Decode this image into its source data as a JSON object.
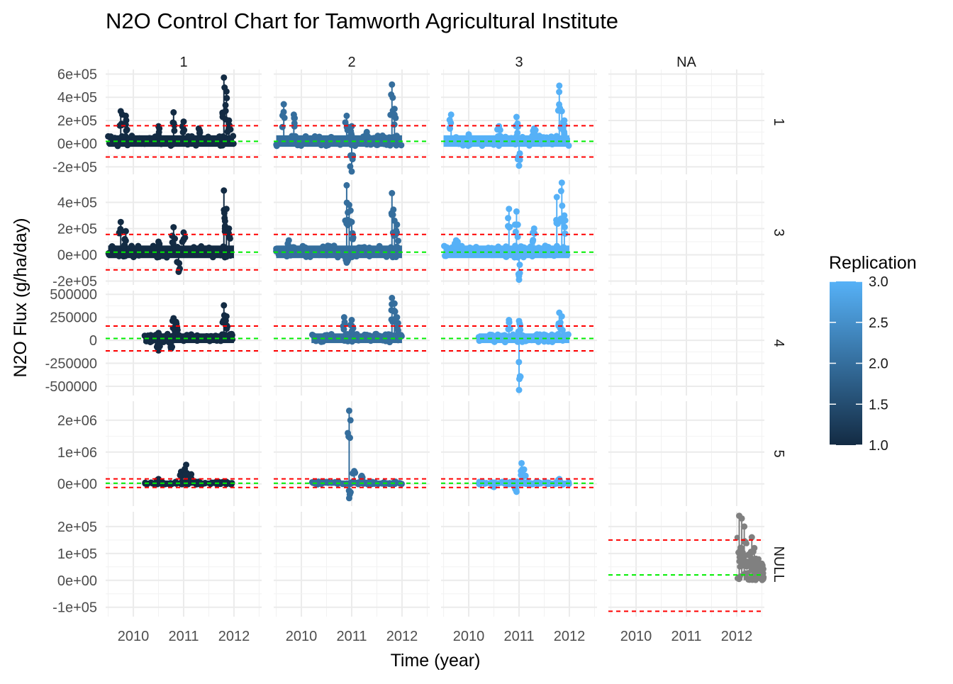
{
  "chart_data": {
    "type": "line",
    "title": "N2O Control Chart for Tamworth Agricultural Institute",
    "xlabel": "Time (year)",
    "ylabel": "N2O Flux (g/ha/day)",
    "x_ticks": [
      "2010",
      "2011",
      "2012"
    ],
    "x_range": [
      2009.45,
      2012.55
    ],
    "facet_columns": [
      "1",
      "2",
      "3",
      "NA"
    ],
    "facet_rows": [
      "1",
      "3",
      "4",
      "5",
      "NULL"
    ],
    "legend": {
      "title": "Replication",
      "position": "right",
      "ticks": [
        "3.0",
        "2.5",
        "2.0",
        "1.5",
        "1.0"
      ],
      "low_color": "#132B43",
      "high_color": "#56B1F7",
      "range": [
        1.0,
        3.0
      ]
    },
    "colors": {
      "upper_control_limit": "#ff0000",
      "lower_control_limit": "#ff0000",
      "center_line": "#00ee00",
      "null_series": "#808080"
    },
    "rows": [
      {
        "label": "1",
        "y_ticks": [
          {
            "value": -200000,
            "label": "-2e+05"
          },
          {
            "value": 0,
            "label": "0e+00"
          },
          {
            "value": 200000,
            "label": "2e+05"
          },
          {
            "value": 400000,
            "label": "4e+05"
          },
          {
            "value": 600000,
            "label": "6e+05"
          }
        ],
        "y_range": [
          -265000,
          640000
        ],
        "ucl": 155000,
        "center": 20000,
        "lcl": -115000,
        "x_start": [
          2009.5,
          2009.5,
          2009.5
        ],
        "x_end": [
          2012.0,
          2012.0,
          2012.0
        ],
        "spikes": [
          [
            [
              2009.75,
              280000
            ],
            [
              2009.85,
              240000
            ],
            [
              2010.5,
              150000
            ],
            [
              2010.8,
              270000
            ],
            [
              2011.0,
              190000
            ],
            [
              2011.3,
              130000
            ],
            [
              2011.8,
              570000
            ],
            [
              2011.85,
              450000
            ],
            [
              2011.9,
              200000
            ]
          ],
          [
            [
              2009.65,
              340000
            ],
            [
              2009.85,
              250000
            ],
            [
              2010.9,
              240000
            ],
            [
              2011.0,
              150000
            ],
            [
              2011.0,
              -240000
            ],
            [
              2011.3,
              100000
            ],
            [
              2011.8,
              510000
            ],
            [
              2011.85,
              300000
            ]
          ],
          [
            [
              2009.65,
              250000
            ],
            [
              2010.0,
              80000
            ],
            [
              2010.6,
              150000
            ],
            [
              2010.95,
              230000
            ],
            [
              2011.0,
              -190000
            ],
            [
              2011.3,
              130000
            ],
            [
              2011.8,
              500000
            ],
            [
              2011.85,
              280000
            ],
            [
              2011.9,
              200000
            ]
          ]
        ]
      },
      {
        "label": "3",
        "y_ticks": [
          {
            "value": -200000,
            "label": "-2e+05"
          },
          {
            "value": 0,
            "label": "0e+00"
          },
          {
            "value": 200000,
            "label": "2e+05"
          },
          {
            "value": 400000,
            "label": "4e+05"
          }
        ],
        "y_range": [
          -230000,
          570000
        ],
        "ucl": 155000,
        "center": 20000,
        "lcl": -115000,
        "x_start": [
          2009.5,
          2009.5,
          2009.5
        ],
        "x_end": [
          2012.0,
          2012.0,
          2012.0
        ],
        "spikes": [
          [
            [
              2009.75,
              250000
            ],
            [
              2009.85,
              180000
            ],
            [
              2010.5,
              100000
            ],
            [
              2010.8,
              210000
            ],
            [
              2010.9,
              -130000
            ],
            [
              2011.0,
              170000
            ],
            [
              2011.8,
              490000
            ],
            [
              2011.85,
              350000
            ],
            [
              2011.9,
              200000
            ]
          ],
          [
            [
              2009.75,
              110000
            ],
            [
              2010.9,
              530000
            ],
            [
              2010.95,
              380000
            ],
            [
              2011.0,
              250000
            ],
            [
              2010.9,
              -60000
            ],
            [
              2011.8,
              470000
            ],
            [
              2011.85,
              260000
            ],
            [
              2011.9,
              230000
            ]
          ],
          [
            [
              2009.75,
              110000
            ],
            [
              2010.8,
              350000
            ],
            [
              2010.95,
              330000
            ],
            [
              2011.0,
              -190000
            ],
            [
              2011.3,
              200000
            ],
            [
              2011.75,
              440000
            ],
            [
              2011.85,
              550000
            ],
            [
              2011.9,
              300000
            ]
          ]
        ]
      },
      {
        "label": "4",
        "y_ticks": [
          {
            "value": -500000,
            "label": "-500000"
          },
          {
            "value": -250000,
            "label": "-250000"
          },
          {
            "value": 0,
            "label": "0"
          },
          {
            "value": 250000,
            "label": "250000"
          },
          {
            "value": 500000,
            "label": "500000"
          }
        ],
        "y_range": [
          -600000,
          540000
        ],
        "ucl": 155000,
        "center": 20000,
        "lcl": -115000,
        "x_start": [
          2010.2,
          2010.2,
          2010.2
        ],
        "x_end": [
          2012.0,
          2012.0,
          2012.0
        ],
        "spikes": [
          [
            [
              2010.5,
              80000
            ],
            [
              2010.8,
              240000
            ],
            [
              2010.85,
              200000
            ],
            [
              2010.5,
              -110000
            ],
            [
              2010.75,
              -90000
            ],
            [
              2011.8,
              380000
            ],
            [
              2011.85,
              260000
            ]
          ],
          [
            [
              2010.85,
              250000
            ],
            [
              2011.0,
              220000
            ],
            [
              2011.8,
              460000
            ],
            [
              2011.85,
              400000
            ],
            [
              2011.9,
              250000
            ]
          ],
          [
            [
              2010.8,
              220000
            ],
            [
              2011.0,
              210000
            ],
            [
              2011.0,
              -540000
            ],
            [
              2011.8,
              300000
            ],
            [
              2011.85,
              260000
            ]
          ]
        ]
      },
      {
        "label": "5",
        "y_ticks": [
          {
            "value": 0,
            "label": "0e+00"
          },
          {
            "value": 1000000,
            "label": "1e+06"
          },
          {
            "value": 2000000,
            "label": "2e+06"
          }
        ],
        "y_range": [
          -700000,
          2600000
        ],
        "ucl": 155000,
        "center": 20000,
        "lcl": -115000,
        "x_start": [
          2010.2,
          2010.2,
          2010.2
        ],
        "x_end": [
          2012.0,
          2012.0,
          2012.0
        ],
        "spikes": [
          [
            [
              2010.5,
              150000
            ],
            [
              2010.95,
              380000
            ],
            [
              2011.05,
              600000
            ],
            [
              2011.15,
              300000
            ]
          ],
          [
            [
              2010.95,
              2300000
            ],
            [
              2010.95,
              -450000
            ],
            [
              2011.05,
              400000
            ],
            [
              2011.2,
              250000
            ]
          ],
          [
            [
              2010.5,
              -100000
            ],
            [
              2010.95,
              -250000
            ],
            [
              2011.05,
              650000
            ],
            [
              2011.1,
              450000
            ],
            [
              2011.8,
              150000
            ]
          ]
        ]
      },
      {
        "label": "NULL",
        "y_ticks": [
          {
            "value": -100000,
            "label": "-1e+05"
          },
          {
            "value": 0,
            "label": "0e+00"
          },
          {
            "value": 100000,
            "label": "1e+05"
          },
          {
            "value": 200000,
            "label": "2e+05"
          }
        ],
        "y_range": [
          -135000,
          255000
        ],
        "ucl": 150000,
        "center": 20000,
        "lcl": -115000,
        "null_series": {
          "x_start": 2012.0,
          "x_end": 2012.55,
          "spikes": [
            [
              2012.05,
              240000
            ],
            [
              2012.1,
              230000
            ],
            [
              2012.15,
              200000
            ],
            [
              2012.3,
              160000
            ],
            [
              2012.35,
              120000
            ],
            [
              2012.45,
              60000
            ]
          ]
        }
      }
    ]
  }
}
